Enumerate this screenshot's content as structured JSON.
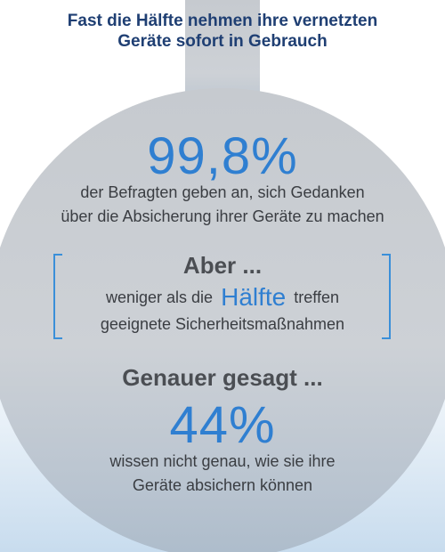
{
  "title": {
    "line1": "Fast die Hälfte nehmen ihre vernetzten",
    "line2": "Geräte sofort in Gebrauch"
  },
  "stat1": {
    "value": "99,8%",
    "line1": "der Befragten geben an, sich Gedanken",
    "line2": "über die Absicherung ihrer Geräte zu machen"
  },
  "bracket": {
    "heading": "Aber ...",
    "line1_before": "weniger als die",
    "line1_highlight": "Hälfte",
    "line1_after": "treffen",
    "line2": "geeignete Sicherheitsmaßnahmen"
  },
  "stat2": {
    "heading": "Genauer gesagt ...",
    "value": "44%",
    "line1": "wissen nicht genau, wie sie ihre",
    "line2": "Geräte absichern können"
  },
  "colors": {
    "title": "#1f3f73",
    "accent_blue": "#2f7fd1",
    "bulb_gray": "#c5c9cf",
    "text_dark": "#3a3d42"
  },
  "icon": "lightbulb-shape"
}
